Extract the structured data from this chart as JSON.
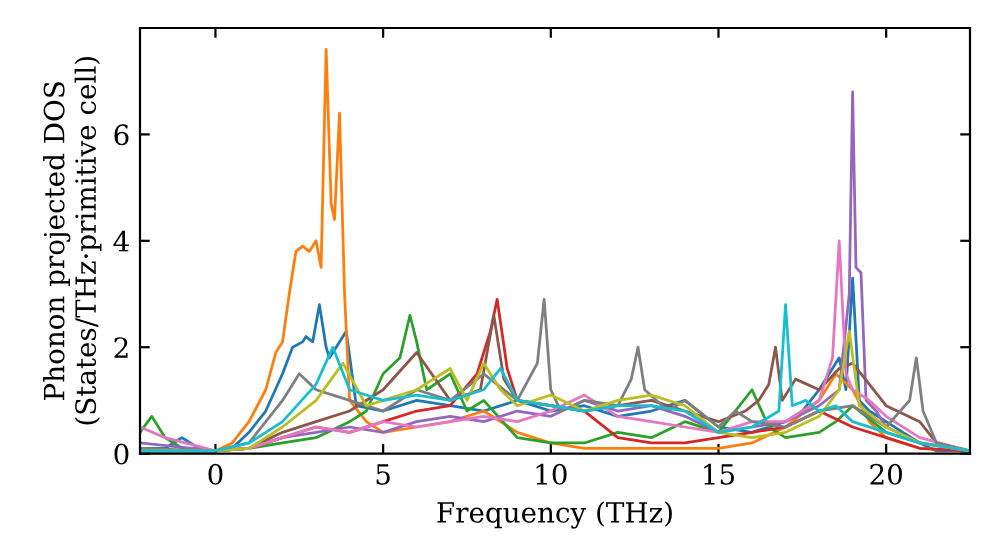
{
  "chart_data": {
    "type": "line",
    "xlabel": "Frequency (THz)",
    "ylabel": "Phonon projected DOS\n(States/THz·primitive cell)",
    "xlim": [
      -2.25,
      22.5
    ],
    "ylim": [
      0,
      8
    ],
    "xticks": [
      0,
      5,
      10,
      15,
      20
    ],
    "yticks": [
      0,
      2,
      4,
      6
    ],
    "grid": false,
    "legend": false,
    "marker": "none",
    "line_style": "solid",
    "series": [
      {
        "color": "#1f77b4",
        "x": [
          -2.25,
          -1.5,
          -1,
          -0.5,
          0,
          0.5,
          1,
          1.5,
          2,
          2.3,
          2.6,
          2.7,
          2.9,
          3.1,
          3.3,
          3.4,
          3.6,
          3.9,
          4.2,
          5,
          6,
          7,
          8,
          9,
          10,
          11,
          12,
          13,
          14,
          15,
          16,
          17,
          17.5,
          18,
          18.3,
          18.6,
          18.8,
          19,
          19.2,
          19.5,
          20,
          20.5,
          21,
          21.5,
          22.5
        ],
        "values": [
          0.1,
          0.1,
          0.3,
          0.1,
          0.05,
          0.1,
          0.4,
          0.8,
          1.5,
          2.0,
          2.1,
          2.2,
          2.1,
          2.8,
          2.0,
          1.8,
          2.0,
          2.3,
          0.9,
          0.8,
          1.0,
          0.9,
          0.8,
          1.0,
          0.8,
          0.9,
          0.7,
          0.8,
          1.0,
          0.5,
          0.4,
          0.6,
          0.8,
          1.2,
          1.5,
          1.8,
          1.2,
          3.3,
          1.0,
          0.8,
          0.6,
          0.4,
          0.2,
          0.05,
          0.05
        ]
      },
      {
        "color": "#ff7f0e",
        "x": [
          -2.25,
          -1,
          0,
          0.5,
          1,
          1.5,
          1.8,
          2.0,
          2.2,
          2.4,
          2.6,
          2.8,
          3.0,
          3.15,
          3.3,
          3.45,
          3.55,
          3.7,
          3.85,
          4.0,
          4.5,
          5,
          6,
          7,
          8,
          9,
          10,
          11,
          12,
          13,
          14,
          15,
          16,
          17,
          18,
          18.5,
          19,
          19.5,
          20,
          21,
          22.5
        ],
        "values": [
          0.05,
          0.05,
          0.05,
          0.2,
          0.6,
          1.2,
          1.9,
          2.1,
          3.0,
          3.8,
          3.9,
          3.8,
          4.0,
          3.5,
          7.6,
          4.7,
          4.4,
          6.4,
          3.0,
          1.0,
          0.6,
          0.4,
          0.5,
          0.6,
          0.8,
          0.4,
          0.2,
          0.1,
          0.1,
          0.1,
          0.1,
          0.1,
          0.2,
          0.5,
          1.0,
          1.5,
          1.2,
          0.6,
          0.3,
          0.1,
          0.05
        ]
      },
      {
        "color": "#2ca02c",
        "x": [
          -2.25,
          -1.9,
          -1.5,
          -1,
          0,
          1,
          2,
          3,
          4,
          4.5,
          5,
          5.5,
          5.8,
          6.0,
          6.3,
          7,
          7.5,
          8,
          9,
          10,
          11,
          12,
          13,
          14,
          15,
          15.5,
          16,
          16.5,
          17,
          18,
          18.5,
          19,
          20,
          21,
          22.5
        ],
        "values": [
          0.4,
          0.7,
          0.3,
          0.1,
          0.05,
          0.1,
          0.2,
          0.3,
          0.6,
          0.8,
          1.5,
          1.8,
          2.6,
          2.1,
          1.2,
          1.5,
          0.8,
          1.0,
          0.3,
          0.2,
          0.2,
          0.4,
          0.3,
          0.6,
          0.4,
          0.8,
          1.2,
          0.5,
          0.3,
          0.4,
          0.6,
          0.9,
          0.4,
          0.2,
          0.05
        ]
      },
      {
        "color": "#d62728",
        "x": [
          -2.25,
          0,
          1,
          2,
          3,
          4,
          5,
          6,
          7,
          7.8,
          8.2,
          8.4,
          8.7,
          9,
          10,
          11,
          12,
          13,
          14,
          15,
          16,
          17,
          18,
          19,
          20,
          21,
          22.5
        ],
        "values": [
          0.05,
          0.05,
          0.1,
          0.3,
          0.5,
          0.4,
          0.6,
          0.8,
          0.9,
          1.5,
          2.3,
          2.9,
          1.6,
          1.0,
          0.9,
          0.8,
          0.3,
          0.2,
          0.2,
          0.3,
          0.4,
          0.5,
          0.8,
          0.5,
          0.3,
          0.1,
          0.05
        ]
      },
      {
        "color": "#9467bd",
        "x": [
          -2.25,
          0,
          1,
          2,
          3,
          4,
          5,
          6,
          7,
          8,
          9,
          10,
          11,
          12,
          13,
          14,
          15,
          16,
          17,
          18,
          18.6,
          18.9,
          19.0,
          19.1,
          19.25,
          19.4,
          19.7,
          20,
          21,
          22.5
        ],
        "values": [
          0.2,
          0.05,
          0.1,
          0.3,
          0.4,
          0.5,
          0.4,
          0.6,
          0.7,
          0.6,
          0.8,
          0.7,
          1.0,
          0.8,
          0.9,
          0.7,
          0.4,
          0.5,
          0.6,
          0.9,
          1.2,
          3.0,
          6.8,
          3.5,
          3.4,
          1.0,
          0.8,
          0.5,
          0.2,
          0.05
        ]
      },
      {
        "color": "#8c564b",
        "x": [
          -2.25,
          0,
          1,
          2,
          3,
          4,
          5,
          6,
          7,
          7.9,
          8.3,
          8.6,
          9,
          10,
          11,
          12,
          13,
          14,
          15,
          15.8,
          16.2,
          16.5,
          16.7,
          16.9,
          17.3,
          18,
          18.6,
          19,
          20,
          21,
          21.5,
          22.5
        ],
        "values": [
          0.05,
          0.05,
          0.1,
          0.4,
          0.6,
          0.8,
          1.2,
          1.9,
          1.0,
          1.2,
          2.6,
          1.4,
          1.0,
          0.9,
          0.8,
          0.9,
          1.0,
          0.8,
          0.6,
          0.8,
          1.0,
          1.3,
          2.0,
          1.0,
          1.4,
          1.2,
          1.6,
          1.7,
          0.9,
          0.6,
          0.2,
          0.05
        ]
      },
      {
        "color": "#e377c2",
        "x": [
          -2.25,
          -1.5,
          0,
          1,
          2,
          3,
          4,
          5,
          6,
          7,
          8,
          9,
          10,
          11,
          12,
          13,
          14,
          15,
          16,
          17,
          18,
          18.4,
          18.6,
          18.8,
          19,
          19.5,
          20,
          21,
          22.5
        ],
        "values": [
          0.5,
          0.3,
          0.05,
          0.1,
          0.3,
          0.5,
          0.4,
          0.6,
          0.5,
          0.6,
          0.7,
          0.6,
          0.8,
          1.1,
          0.7,
          0.6,
          0.5,
          0.4,
          0.6,
          0.6,
          1.0,
          1.8,
          4.0,
          1.5,
          1.2,
          1.0,
          0.7,
          0.3,
          0.05
        ]
      },
      {
        "color": "#7f7f7f",
        "x": [
          -2.25,
          0,
          1,
          2,
          2.5,
          3,
          4,
          5,
          6,
          7,
          8,
          9,
          9.6,
          9.8,
          10.0,
          10.3,
          11,
          12,
          12.4,
          12.6,
          12.8,
          13.5,
          14,
          15,
          15.5,
          16,
          17,
          18,
          19,
          20,
          20.7,
          20.9,
          21.1,
          21.5,
          22.5
        ],
        "values": [
          0.1,
          0.05,
          0.2,
          1.0,
          1.5,
          1.2,
          1.0,
          0.8,
          1.2,
          1.0,
          1.5,
          1.0,
          1.7,
          2.9,
          1.2,
          0.8,
          1.0,
          0.9,
          1.4,
          2.0,
          1.2,
          0.8,
          1.0,
          0.5,
          0.8,
          0.6,
          0.5,
          0.8,
          0.9,
          0.5,
          1.0,
          1.8,
          0.8,
          0.2,
          0.05
        ]
      },
      {
        "color": "#bcbd22",
        "x": [
          -2.25,
          0,
          1,
          2,
          3,
          3.8,
          4.5,
          5,
          6,
          7,
          7.5,
          8,
          8.5,
          9,
          10,
          11,
          12,
          13,
          14,
          15,
          16,
          17,
          18,
          18.6,
          18.9,
          19.2,
          20,
          21,
          22.5
        ],
        "values": [
          0.05,
          0.05,
          0.1,
          0.5,
          1.0,
          1.7,
          0.9,
          1.0,
          1.2,
          1.6,
          1.0,
          1.7,
          1.2,
          0.9,
          1.1,
          0.8,
          1.0,
          1.1,
          0.9,
          0.4,
          0.3,
          0.4,
          0.7,
          1.2,
          2.3,
          0.9,
          0.5,
          0.2,
          0.05
        ]
      },
      {
        "color": "#17becf",
        "x": [
          -2.25,
          0,
          1,
          2,
          3,
          3.5,
          4,
          5,
          6,
          7,
          8,
          8.5,
          9,
          10,
          11,
          12,
          13,
          14,
          15,
          16,
          16.8,
          17.0,
          17.2,
          17.6,
          18,
          18.5,
          19,
          20,
          21,
          22.5
        ],
        "values": [
          0.05,
          0.05,
          0.2,
          0.6,
          1.3,
          2.0,
          1.2,
          1.0,
          1.1,
          1.0,
          1.2,
          1.6,
          1.0,
          0.9,
          0.8,
          0.9,
          0.9,
          0.8,
          0.4,
          0.5,
          0.8,
          2.8,
          0.9,
          1.0,
          0.8,
          0.9,
          0.6,
          0.4,
          0.2,
          0.05
        ]
      }
    ]
  }
}
